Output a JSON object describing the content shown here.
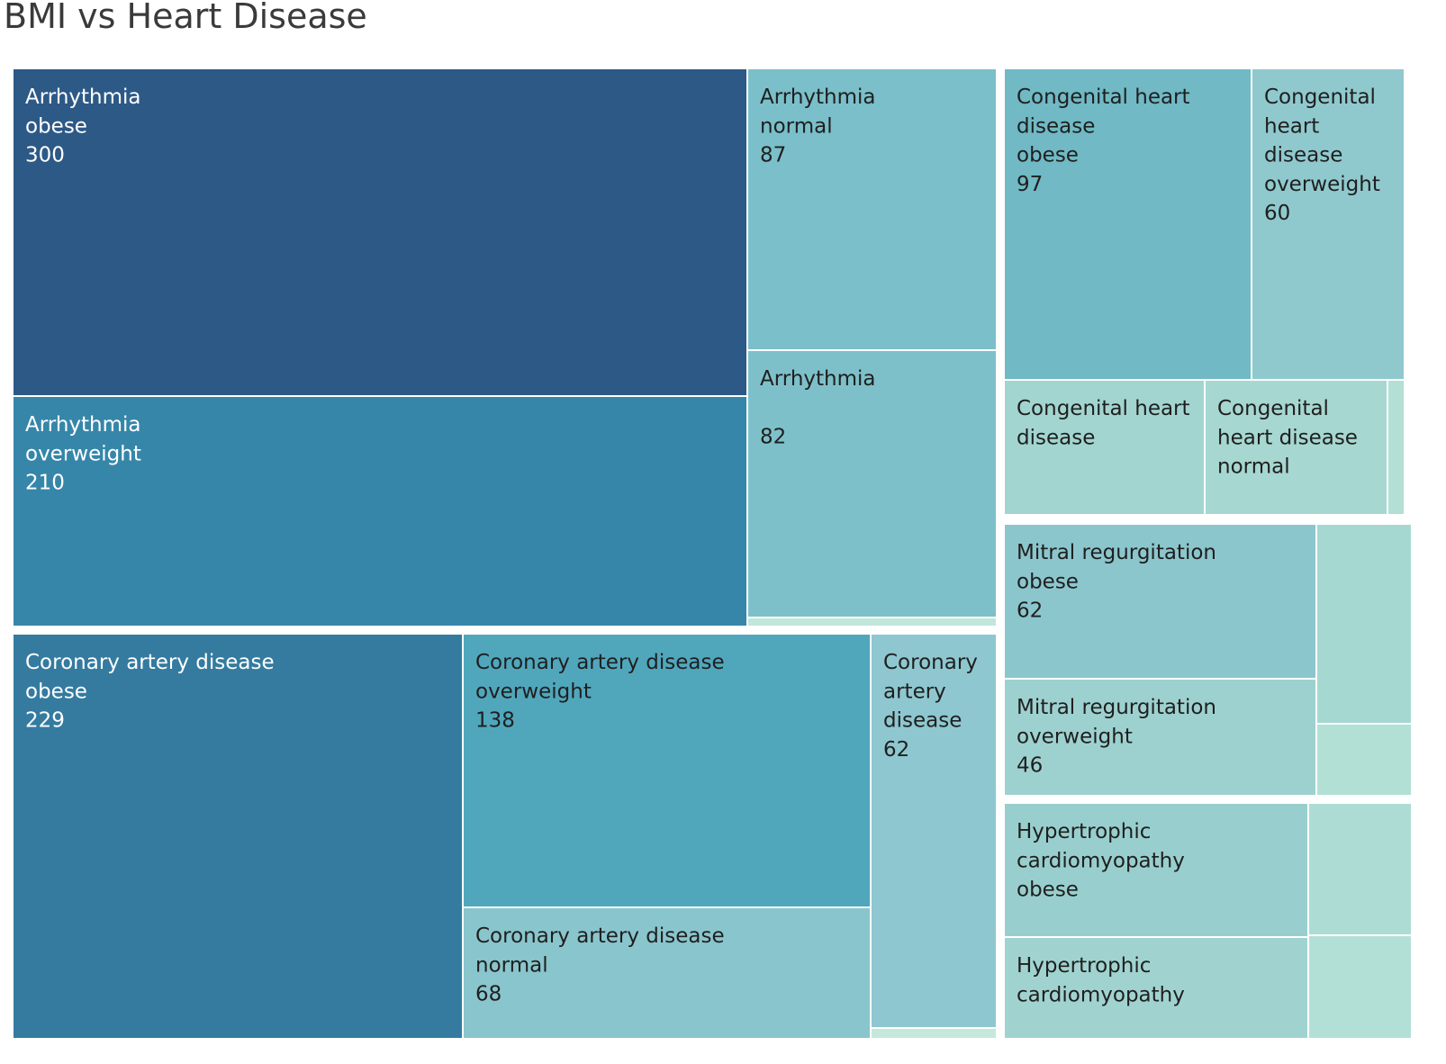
{
  "chart_data": {
    "type": "treemap",
    "title": "BMI vs Heart Disease",
    "nodes": [
      {
        "label": [
          "Arrhythmia",
          "obese"
        ],
        "value": "300",
        "color": "#2d5986",
        "text_color": "#ffffff"
      },
      {
        "label": [
          "Arrhythmia",
          "overweight"
        ],
        "value": "210",
        "color": "#3686a9",
        "text_color": "#ffffff"
      },
      {
        "label": [
          "Arrhythmia",
          "normal"
        ],
        "value": "87",
        "color": "#7abfc9",
        "text_color": "#1f1f1f"
      },
      {
        "label": [
          "Arrhythmia"
        ],
        "value": "82",
        "color": "#7ec0c9",
        "text_color": "#1f1f1f"
      },
      {
        "label": [],
        "value": "",
        "color": "#c2e6da",
        "text_color": "#1f1f1f"
      },
      {
        "label": [
          "Coronary artery disease",
          "obese"
        ],
        "value": "229",
        "color": "#347b9f",
        "text_color": "#ffffff"
      },
      {
        "label": [
          "Coronary artery disease",
          "overweight"
        ],
        "value": "138",
        "color": "#50a7bc",
        "text_color": "#1f1f1f"
      },
      {
        "label": [
          "Coronary artery disease",
          "normal"
        ],
        "value": "68",
        "color": "#89c5cc",
        "text_color": "#1f1f1f"
      },
      {
        "label": [
          "Coronary",
          "artery",
          "disease"
        ],
        "value": "62",
        "color": "#8ec7cf",
        "text_color": "#1f1f1f"
      },
      {
        "label": [],
        "value": "",
        "color": "#c5e8db",
        "text_color": "#1f1f1f"
      },
      {
        "label": [
          "Congenital heart",
          "disease",
          "obese"
        ],
        "value": "97",
        "color": "#70b9c5",
        "text_color": "#1f1f1f"
      },
      {
        "label": [
          "Congenital",
          "heart",
          "disease",
          "overweight"
        ],
        "value": "60",
        "color": "#8fc9ce",
        "text_color": "#1f1f1f"
      },
      {
        "label": [
          "Congenital heart",
          "disease"
        ],
        "value": "",
        "color": "#a2d5d0",
        "text_color": "#1f1f1f"
      },
      {
        "label": [
          "Congenital",
          "heart disease",
          "normal"
        ],
        "value": "",
        "color": "#a6d7d1",
        "text_color": "#1f1f1f"
      },
      {
        "label": [],
        "value": "",
        "color": "#b3dfd5",
        "text_color": "#1f1f1f"
      },
      {
        "label": [
          "Mitral regurgitation",
          "obese"
        ],
        "value": "62",
        "color": "#8bc6cd",
        "text_color": "#1f1f1f"
      },
      {
        "label": [
          "Mitral regurgitation",
          "overweight"
        ],
        "value": "46",
        "color": "#9dd1cf",
        "text_color": "#1f1f1f"
      },
      {
        "label": [],
        "value": "",
        "color": "#a6d8d2",
        "text_color": "#1f1f1f"
      },
      {
        "label": [],
        "value": "",
        "color": "#b3e0d5",
        "text_color": "#1f1f1f"
      },
      {
        "label": [
          "Hypertrophic",
          "cardiomyopathy",
          "obese"
        ],
        "value": "",
        "color": "#98cfce",
        "text_color": "#1f1f1f"
      },
      {
        "label": [
          "Hypertrophic",
          "cardiomyopathy"
        ],
        "value": "",
        "color": "#a0d3d0",
        "text_color": "#1f1f1f"
      },
      {
        "label": [],
        "value": "",
        "color": "#acdcd3",
        "text_color": "#1f1f1f"
      },
      {
        "label": [],
        "value": "",
        "color": "#b3e0d6",
        "text_color": "#1f1f1f"
      }
    ]
  }
}
